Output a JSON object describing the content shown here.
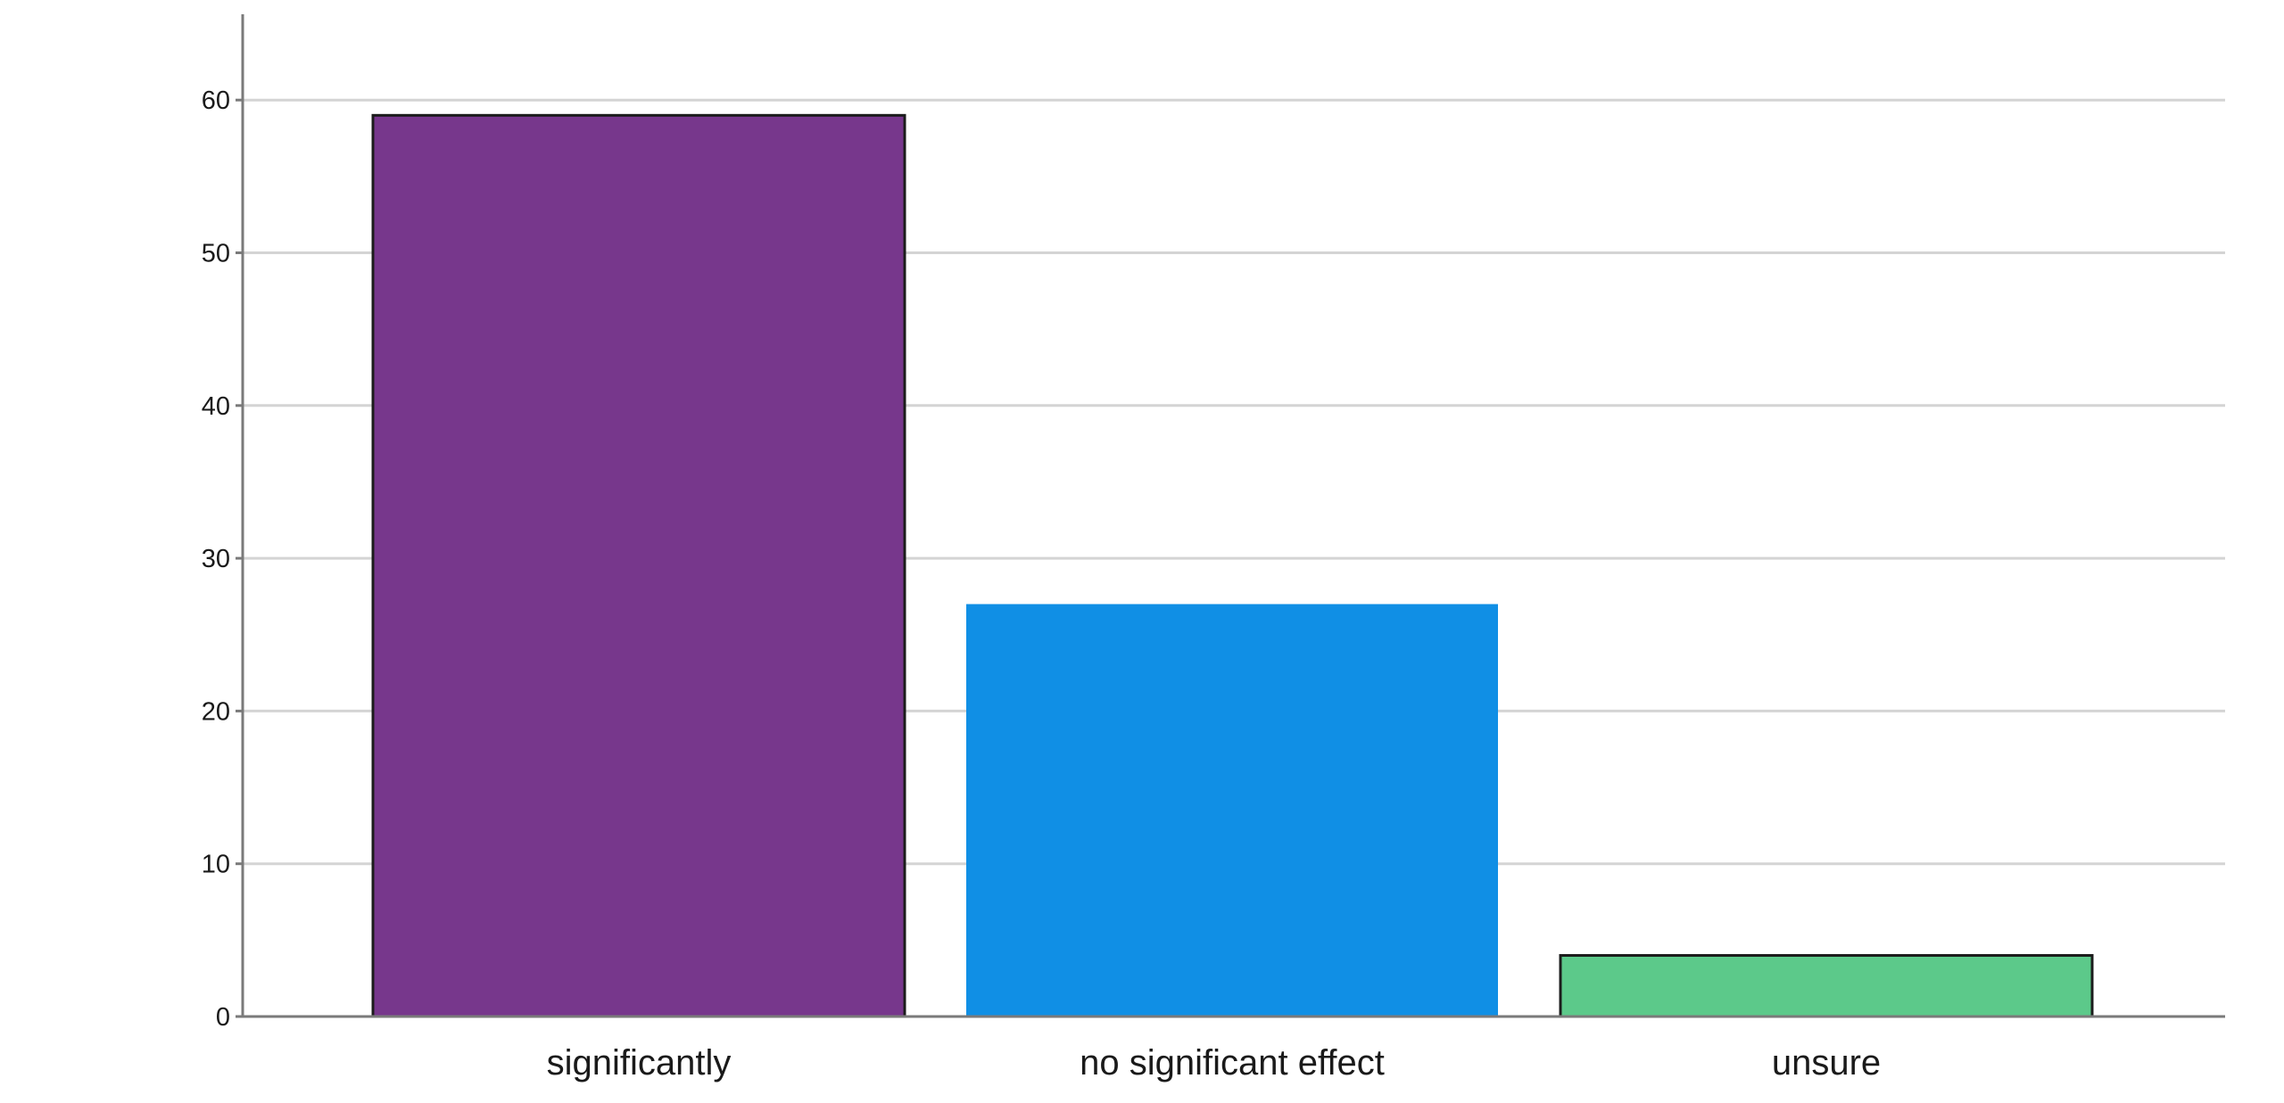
{
  "chart_data": {
    "type": "bar",
    "categories": [
      "significantly",
      "no significant effect",
      "unsure"
    ],
    "values": [
      59,
      27,
      4
    ],
    "colors": [
      "#77378c",
      "#108fe5",
      "#5cc98a"
    ],
    "ylim": [
      0,
      65
    ],
    "yticks": [
      0,
      10,
      20,
      30,
      40,
      50,
      60
    ],
    "grid": true,
    "title": "",
    "xlabel": "",
    "ylabel": ""
  }
}
